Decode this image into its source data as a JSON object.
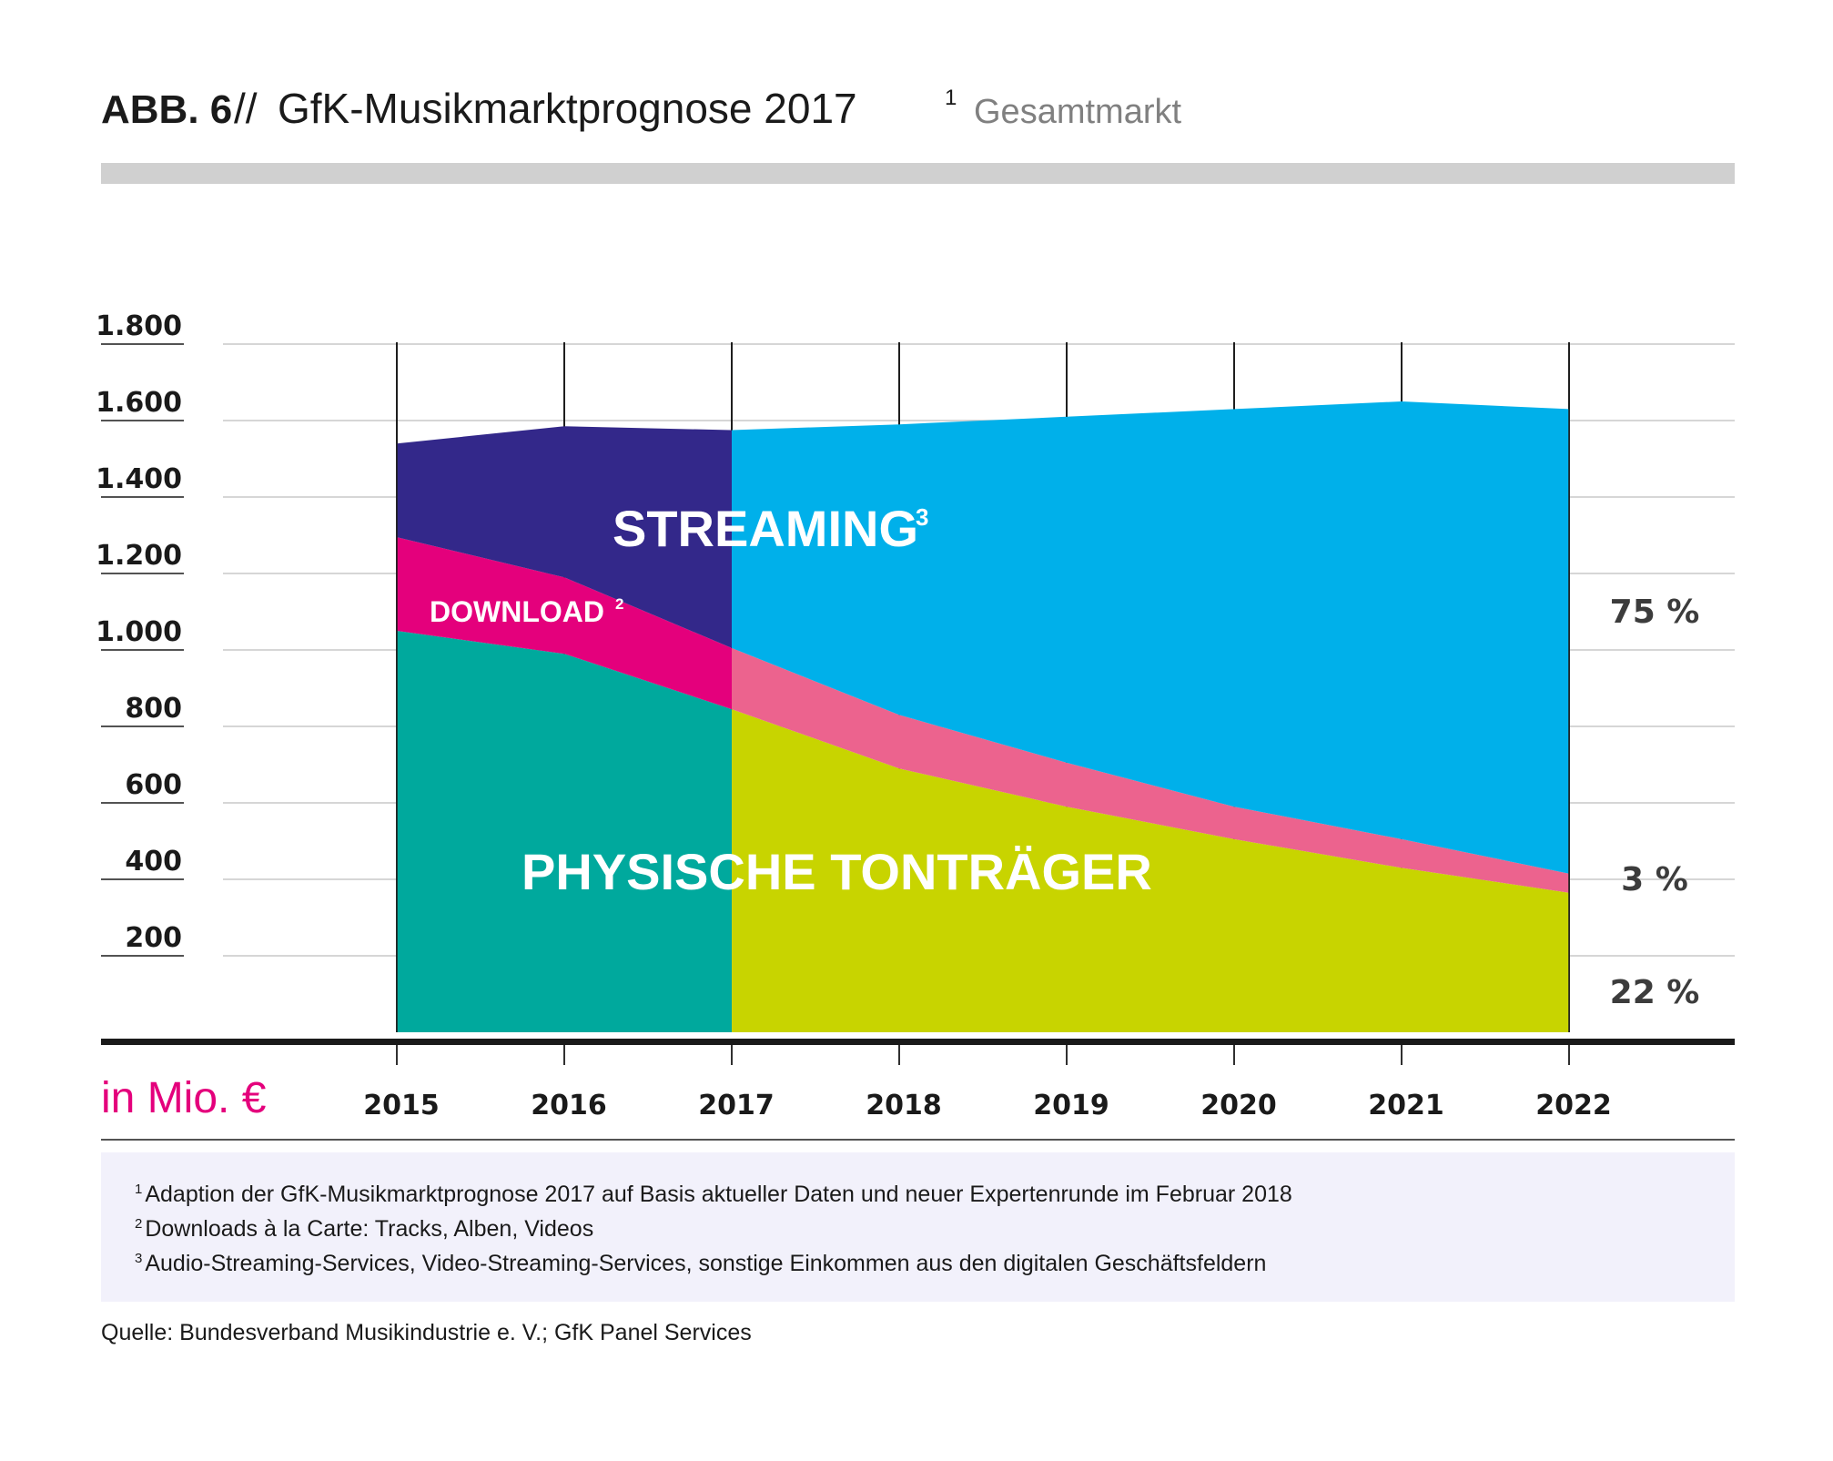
{
  "header": {
    "label": "ABB. 6",
    "separator": "//",
    "title": "GfK-Musikmarktprognose 2017",
    "title_sup": "1",
    "subtitle": "Gesamtmarkt"
  },
  "colors": {
    "streaming_hist": "#33288a",
    "streaming_forecast": "#00b0ea",
    "download_hist": "#e4007c",
    "download_forecast": "#ec638e",
    "physical_hist": "#00a99d",
    "physical_forecast": "#c8d400",
    "unit_label": "#e4007c",
    "header_bar": "#d0d0d0"
  },
  "chart_data": {
    "type": "area",
    "stacked": true,
    "x": [
      "2015",
      "2016",
      "2017",
      "2018",
      "2019",
      "2020",
      "2021",
      "2022"
    ],
    "series": [
      {
        "name": "PHYSISCHE TONTRÄGER",
        "values": [
          1050,
          990,
          845,
          690,
          590,
          505,
          430,
          365
        ]
      },
      {
        "name": "DOWNLOAD",
        "name_sup": "2",
        "values": [
          245,
          200,
          160,
          140,
          115,
          85,
          75,
          50
        ]
      },
      {
        "name": "STREAMING",
        "name_sup": "3",
        "values": [
          245,
          395,
          570,
          760,
          905,
          1040,
          1145,
          1215
        ]
      }
    ],
    "forecast_from": "2017",
    "y_ticks": [
      "200",
      "400",
      "600",
      "800",
      "1.000",
      "1.200",
      "1.400",
      "1.600",
      "1.800"
    ],
    "ylim": [
      0,
      1850
    ],
    "unit_label": "in Mio. €",
    "share_labels": {
      "streaming": "75 %",
      "download": "3 %",
      "physical": "22 %"
    },
    "grid": true
  },
  "footnotes": [
    {
      "num": "1",
      "text": "Adaption der GfK-Musikmarktprognose 2017 auf Basis aktueller Daten und neuer Expertenrunde im Februar 2018"
    },
    {
      "num": "2",
      "text": "Downloads à la Carte: Tracks, Alben, Videos"
    },
    {
      "num": "3",
      "text": "Audio-Streaming-Services, Video-Streaming-Services, sonstige Einkommen aus den digitalen Geschäftsfeldern"
    }
  ],
  "source": "Quelle: Bundesverband Musikindustrie e. V.; GfK Panel Services"
}
